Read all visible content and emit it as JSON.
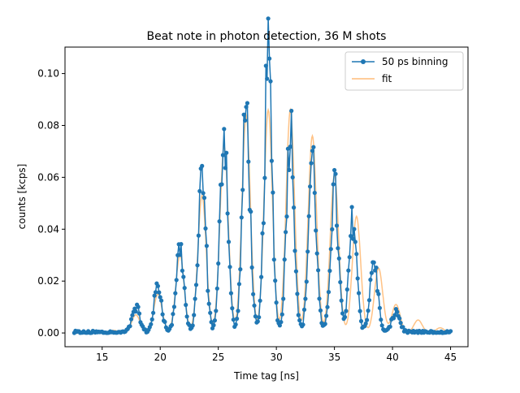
{
  "chart_data": {
    "type": "line",
    "title": "Beat note in photon detection, 36 M shots",
    "xlabel": "Time tag [ns]",
    "ylabel": "counts [kcps]",
    "xlim": [
      11.8,
      46.5
    ],
    "ylim": [
      -0.0053,
      0.1102
    ],
    "xticks": [
      15,
      20,
      25,
      30,
      35,
      40,
      45
    ],
    "yticks": [
      0.0,
      0.02,
      0.04,
      0.06,
      0.08,
      0.1
    ],
    "xtick_labels": [
      "15",
      "20",
      "25",
      "30",
      "35",
      "40",
      "45"
    ],
    "ytick_labels": [
      "0.00",
      "0.02",
      "0.04",
      "0.06",
      "0.08",
      "0.10"
    ],
    "grid": false,
    "legend_position": "top-right",
    "series": [
      {
        "name": "50 ps binning",
        "style": "line-with-markers",
        "color": "#1f77b4",
        "envelope_center": 29.5,
        "envelope_sigma": 5.2,
        "peak_spacing": 1.9,
        "peak_positions": [
          17.9,
          19.8,
          21.7,
          23.6,
          25.5,
          27.4,
          29.3,
          31.2,
          33.1,
          35.0,
          36.6,
          38.4,
          40.3
        ],
        "peak_heights": [
          0.01,
          0.018,
          0.033,
          0.06,
          0.079,
          0.086,
          0.105,
          0.08,
          0.068,
          0.055,
          0.044,
          0.027,
          0.008
        ]
      },
      {
        "name": "fit",
        "style": "line",
        "color": "#ffbb78",
        "description_envelope": "gaussian-modulated cosine",
        "peak_positions": [
          16.0,
          17.9,
          19.8,
          21.7,
          23.6,
          25.5,
          27.4,
          29.3,
          31.2,
          33.1,
          35.0,
          36.9,
          38.8,
          40.3,
          42.2,
          44.1
        ],
        "peak_heights": [
          0.001,
          0.007,
          0.015,
          0.03,
          0.053,
          0.072,
          0.084,
          0.086,
          0.086,
          0.076,
          0.061,
          0.045,
          0.025,
          0.011,
          0.005,
          0.002
        ]
      }
    ]
  }
}
